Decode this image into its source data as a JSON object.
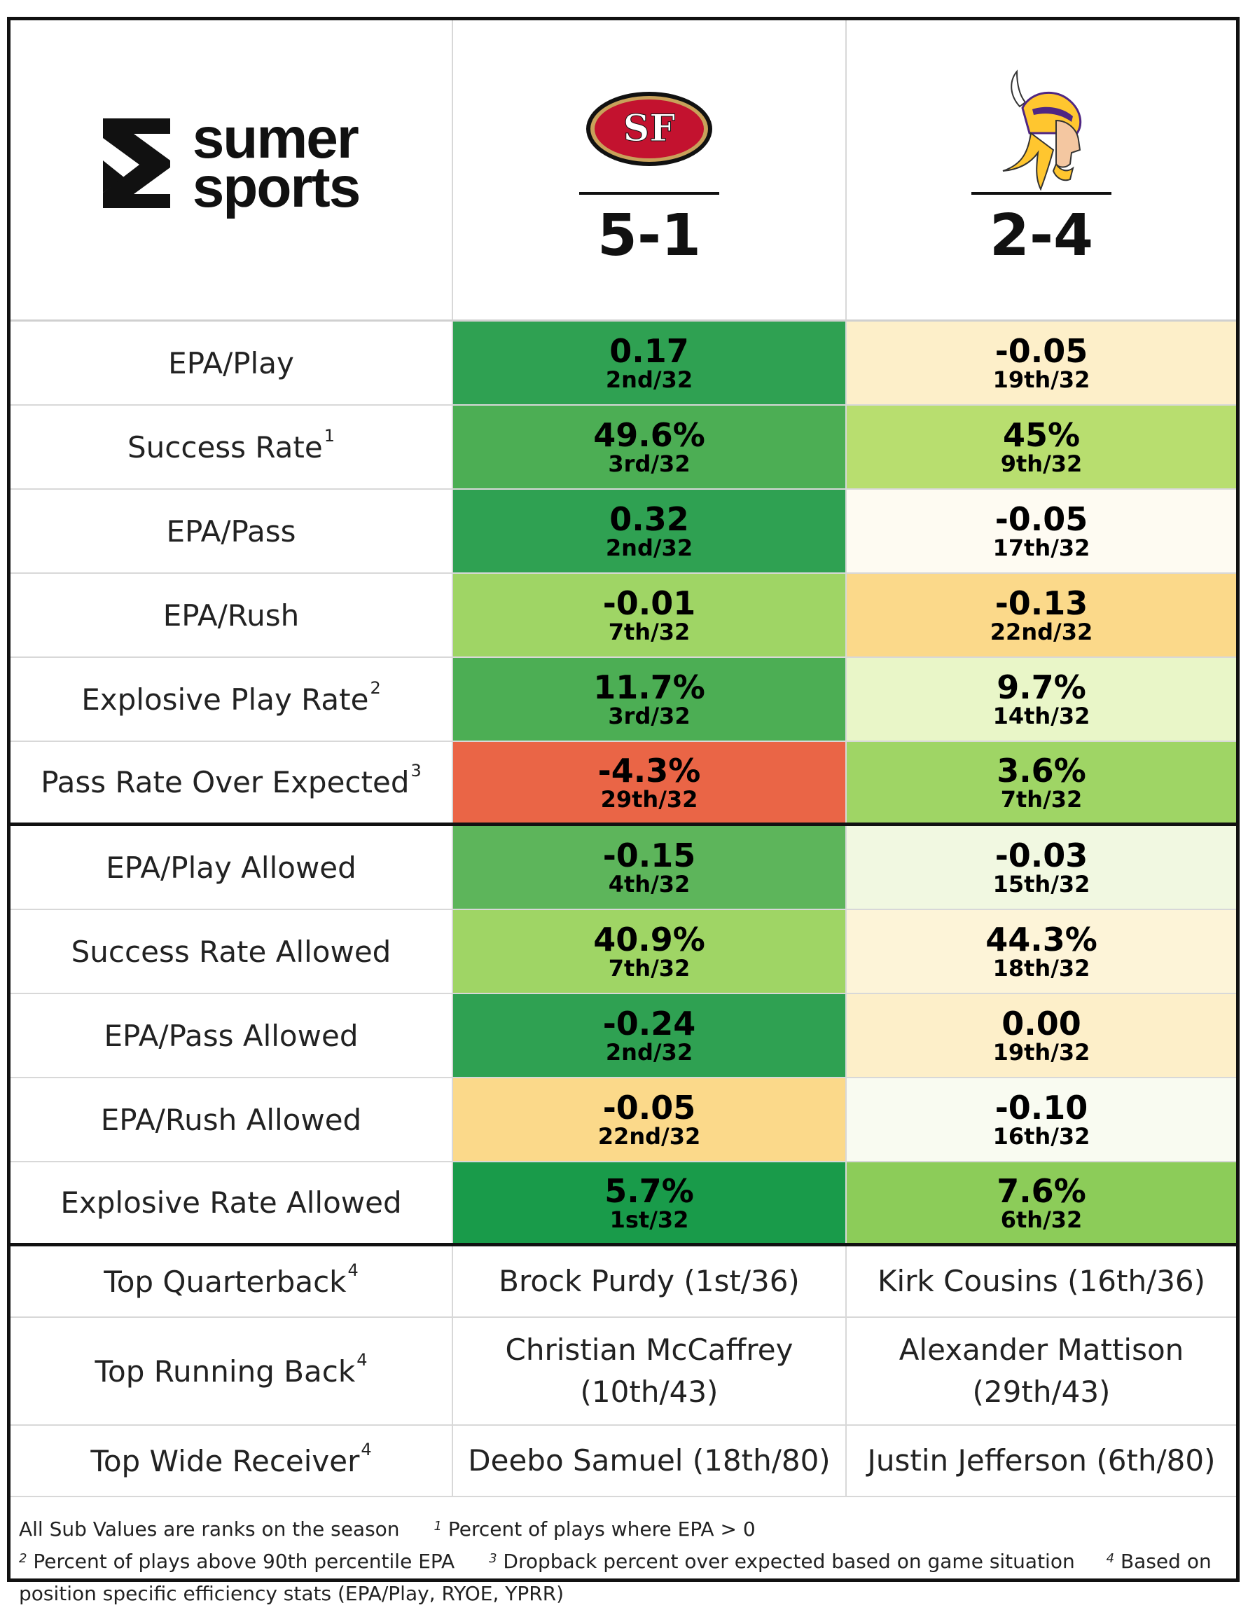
{
  "brand": {
    "line1": "sumer",
    "line2": "sports"
  },
  "teams": [
    {
      "icon": "49ers-logo",
      "logo_text": "SF",
      "record": "5-1"
    },
    {
      "icon": "vikings-logo",
      "record": "2-4"
    }
  ],
  "colors": {
    "dark_green": "#2fa152",
    "green": "#4cae54",
    "mid_green": "#5db55b",
    "light_green": "#9fd565",
    "lime": "#b8de6f",
    "pale_green": "#e9f6c8",
    "very_pale_green": "#f1f8e1",
    "cream": "#fdf0cf",
    "off_white": "#fdfaf0",
    "light_orange": "#fbd98a",
    "red_orange": "#ea6546",
    "best_green": "#199b4a",
    "bright_green": "#8ccc59"
  },
  "stats": [
    {
      "label": "EPA/Play",
      "sup": "",
      "team1": {
        "value": "0.17",
        "rank": "2nd/32",
        "color": "#2fa152"
      },
      "team2": {
        "value": "-0.05",
        "rank": "19th/32",
        "color": "#fdefc9"
      }
    },
    {
      "label": "Success Rate",
      "sup": "1",
      "team1": {
        "value": "49.6%",
        "rank": "3rd/32",
        "color": "#4cae54"
      },
      "team2": {
        "value": "45%",
        "rank": "9th/32",
        "color": "#b8de6f"
      }
    },
    {
      "label": "EPA/Pass",
      "sup": "",
      "team1": {
        "value": "0.32",
        "rank": "2nd/32",
        "color": "#2fa152"
      },
      "team2": {
        "value": "-0.05",
        "rank": "17th/32",
        "color": "#fefbf2"
      }
    },
    {
      "label": "EPA/Rush",
      "sup": "",
      "team1": {
        "value": "-0.01",
        "rank": "7th/32",
        "color": "#9fd565"
      },
      "team2": {
        "value": "-0.13",
        "rank": "22nd/32",
        "color": "#fbd98a"
      }
    },
    {
      "label": "Explosive Play Rate",
      "sup": "2",
      "team1": {
        "value": "11.7%",
        "rank": "3rd/32",
        "color": "#4cae54"
      },
      "team2": {
        "value": "9.7%",
        "rank": "14th/32",
        "color": "#e9f6c8"
      }
    },
    {
      "label": "Pass Rate Over Expected",
      "sup": "3",
      "team1": {
        "value": "-4.3%",
        "rank": "29th/32",
        "color": "#ea6546"
      },
      "team2": {
        "value": "3.6%",
        "rank": "7th/32",
        "color": "#9fd565"
      }
    },
    {
      "label": "EPA/Play Allowed",
      "sup": "",
      "team1": {
        "value": "-0.15",
        "rank": "4th/32",
        "color": "#5db55b"
      },
      "team2": {
        "value": "-0.03",
        "rank": "15th/32",
        "color": "#f1f8e1"
      }
    },
    {
      "label": "Success Rate Allowed",
      "sup": "",
      "team1": {
        "value": "40.9%",
        "rank": "7th/32",
        "color": "#9fd565"
      },
      "team2": {
        "value": "44.3%",
        "rank": "18th/32",
        "color": "#fdf4d8"
      }
    },
    {
      "label": "EPA/Pass Allowed",
      "sup": "",
      "team1": {
        "value": "-0.24",
        "rank": "2nd/32",
        "color": "#2fa152"
      },
      "team2": {
        "value": "0.00",
        "rank": "19th/32",
        "color": "#fdefc9"
      }
    },
    {
      "label": "EPA/Rush Allowed",
      "sup": "",
      "team1": {
        "value": "-0.05",
        "rank": "22nd/32",
        "color": "#fbd98a"
      },
      "team2": {
        "value": "-0.10",
        "rank": "16th/32",
        "color": "#f9fbf1"
      }
    },
    {
      "label": "Explosive Rate Allowed",
      "sup": "",
      "team1": {
        "value": "5.7%",
        "rank": "1st/32",
        "color": "#199b4a"
      },
      "team2": {
        "value": "7.6%",
        "rank": "6th/32",
        "color": "#8ccc59"
      }
    }
  ],
  "players": [
    {
      "label": "Top Quarterback",
      "sup": "4",
      "team1": "Brock Purdy (1st/36)",
      "team2": "Kirk Cousins (16th/36)"
    },
    {
      "label": "Top Running Back",
      "sup": "4",
      "team1": "Christian McCaffrey (10th/43)",
      "team2": "Alexander Mattison (29th/43)"
    },
    {
      "label": "Top Wide Receiver",
      "sup": "4",
      "team1": "Deebo Samuel (18th/80)",
      "team2": "Justin Jefferson (6th/80)"
    }
  ],
  "footer": {
    "note0": "All Sub Values are ranks on the season",
    "note1_sup": "1",
    "note1": "Percent of plays where EPA > 0",
    "note2_sup": "2",
    "note2": "Percent of plays above 90th percentile EPA",
    "note3_sup": "3",
    "note3": "Dropback percent over expected based on game situation",
    "note4_sup": "4",
    "note4": "Based on position specific efficiency stats (EPA/Play, RYOE, YPRR)"
  }
}
